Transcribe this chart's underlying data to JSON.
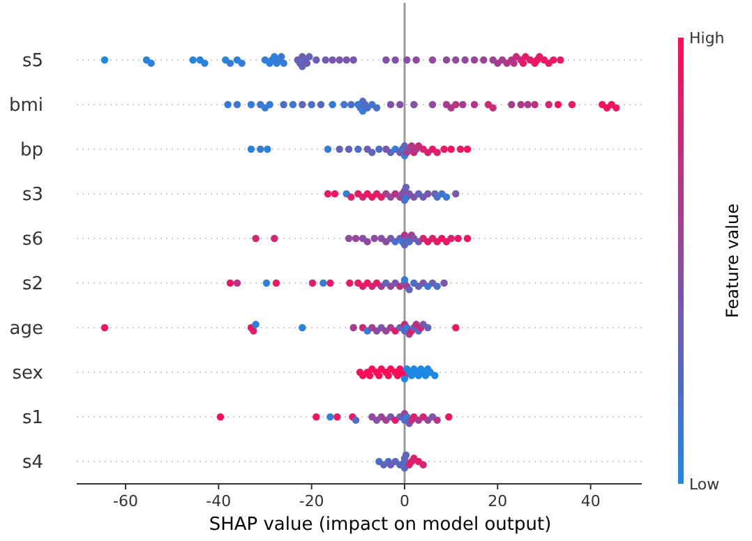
{
  "chart_data": {
    "type": "scatter",
    "orientation": "horizontal",
    "xlabel": "SHAP value (impact on model output)",
    "clabel": "Feature value",
    "categories": [
      "s5",
      "bmi",
      "bp",
      "s3",
      "s6",
      "s2",
      "age",
      "sex",
      "s1",
      "s4"
    ],
    "xlim": [
      -70.5,
      51
    ],
    "xticks": [
      -60,
      -40,
      -20,
      0,
      20,
      40
    ],
    "clim": [
      0,
      1
    ],
    "cticks": [
      {
        "value": 0,
        "label": "Low"
      },
      {
        "value": 1,
        "label": "High"
      }
    ],
    "grid": "y",
    "ref_lines": [
      {
        "axis": "x",
        "value": 0,
        "color": "#999999"
      }
    ],
    "series": [
      {
        "x": [
          "s5",
          "s5",
          "s5",
          "s5",
          "s5",
          "s5",
          "s5",
          "s5",
          "s5",
          "s5",
          "s5",
          "s5",
          "s5",
          "s5",
          "s5",
          "s5",
          "s5",
          "s5",
          "s5",
          "s5",
          "s5",
          "s5",
          "s5",
          "s5",
          "s5",
          "s5",
          "s5",
          "s5",
          "s5",
          "s5",
          "s5",
          "s5",
          "s5",
          "s5",
          "s5",
          "s5",
          "s5",
          "s5",
          "s5",
          "s5",
          "s5",
          "s5",
          "s5",
          "s5",
          "s5",
          "s5",
          "s5",
          "s5",
          "s5",
          "s5",
          "s5",
          "s5",
          "s5",
          "s5",
          "s5",
          "s5",
          "s5",
          "s5",
          "s5"
        ],
        "values": [
          -64.5,
          -55.5,
          -54.5,
          -45.5,
          -44,
          -43,
          -38.5,
          -37.5,
          -36,
          -35,
          -30,
          -29,
          -28.5,
          -28,
          -27.5,
          -27,
          -26.5,
          -26,
          -23,
          -22.5,
          -22,
          -22,
          -21.5,
          -21,
          -20.5,
          -19,
          -17,
          -15.5,
          -14,
          -12.5,
          -11,
          -4,
          -2,
          0.5,
          2.5,
          6,
          9,
          11,
          13,
          15,
          17,
          19,
          20,
          21,
          22,
          23,
          23.5,
          24,
          25,
          25.5,
          26,
          27,
          28,
          28.5,
          29,
          30,
          31,
          32,
          33.5
        ],
        "colors": [
          "#1e88e5",
          "#2982de",
          "#2982de",
          "#2982de",
          "#2982de",
          "#2982de",
          "#2982de",
          "#357cd7",
          "#2982de",
          "#357cd7",
          "#357cd7",
          "#2982de",
          "#357cd7",
          "#2982de",
          "#357cd7",
          "#357cd7",
          "#4076d0",
          "#357cd7",
          "#6263ba",
          "#6263ba",
          "#6d5db3",
          "#6263ba",
          "#6263ba",
          "#6d5db3",
          "#6263ba",
          "#6d5db3",
          "#6d5db3",
          "#7857ac",
          "#7857ac",
          "#7857ac",
          "#7857ac",
          "#8351a5",
          "#8351a5",
          "#8351a5",
          "#8f4b9e",
          "#8f4b9e",
          "#8f4b9e",
          "#8f4b9e",
          "#8f4b9e",
          "#9a4497",
          "#9a4497",
          "#9a4497",
          "#a53e90",
          "#a53e90",
          "#b03889",
          "#bc3282",
          "#b03889",
          "#c72c7b",
          "#d22673",
          "#e91965",
          "#e91965",
          "#dd1f6c",
          "#e91965",
          "#f4135e",
          "#e91965",
          "#f4135e",
          "#e91965",
          "#e91965",
          "#e91965"
        ]
      },
      {
        "x": [
          "bmi",
          "bmi",
          "bmi",
          "bmi",
          "bmi",
          "bmi",
          "bmi",
          "bmi",
          "bmi",
          "bmi",
          "bmi",
          "bmi",
          "bmi",
          "bmi",
          "bmi",
          "bmi",
          "bmi",
          "bmi",
          "bmi",
          "bmi",
          "bmi",
          "bmi",
          "bmi",
          "bmi",
          "bmi",
          "bmi",
          "bmi",
          "bmi",
          "bmi",
          "bmi",
          "bmi",
          "bmi",
          "bmi",
          "bmi",
          "bmi",
          "bmi",
          "bmi",
          "bmi",
          "bmi",
          "bmi",
          "bmi",
          "bmi",
          "bmi",
          "bmi"
        ],
        "values": [
          -38,
          -36,
          -33,
          -31,
          -30,
          -29,
          -26,
          -24,
          -22,
          -20,
          -18,
          -15.5,
          -13,
          -11.5,
          -10,
          -9.5,
          -9,
          -9,
          -8.5,
          -8,
          -7,
          -6,
          -3,
          -1,
          2,
          6,
          9,
          10,
          11,
          12.5,
          15,
          18,
          19,
          23,
          25,
          26.5,
          28,
          31,
          33,
          36,
          42.5,
          43.5,
          44.5,
          45.5
        ],
        "colors": [
          "#357cd7",
          "#4076d0",
          "#357cd7",
          "#4076d0",
          "#357cd7",
          "#357cd7",
          "#4b6fc9",
          "#4076d0",
          "#6263ba",
          "#4b6fc9",
          "#5669c2",
          "#357cd7",
          "#4076d0",
          "#4b6fc9",
          "#357cd7",
          "#4076d0",
          "#4b6fc9",
          "#357cd7",
          "#5669c2",
          "#4b6fc9",
          "#4076d0",
          "#4b6fc9",
          "#8351a5",
          "#8351a5",
          "#8351a5",
          "#8f4b9e",
          "#a53e90",
          "#b03889",
          "#bc3282",
          "#a53e90",
          "#b03889",
          "#d22673",
          "#c72c7b",
          "#a53e90",
          "#b03889",
          "#a53e90",
          "#bc3282",
          "#d22673",
          "#f4135e",
          "#e91965",
          "#f4135e",
          "#ff0d57",
          "#f4135e",
          "#f4135e"
        ]
      },
      {
        "x": [
          "bp",
          "bp",
          "bp",
          "bp",
          "bp",
          "bp",
          "bp",
          "bp",
          "bp",
          "bp",
          "bp",
          "bp",
          "bp",
          "bp",
          "bp",
          "bp",
          "bp",
          "bp",
          "bp",
          "bp",
          "bp",
          "bp",
          "bp",
          "bp",
          "bp",
          "bp",
          "bp",
          "bp",
          "bp",
          "bp",
          "bp"
        ],
        "values": [
          -33,
          -31,
          -29.5,
          -16.5,
          -14,
          -12,
          -10,
          -8,
          -7,
          -5.5,
          -4,
          -3,
          -2,
          -1,
          -0.5,
          0,
          0,
          0.5,
          1,
          1.5,
          2,
          2.5,
          3,
          4,
          5,
          6,
          7,
          8.5,
          10,
          12,
          13.5
        ],
        "colors": [
          "#2982de",
          "#357cd7",
          "#2982de",
          "#357cd7",
          "#6263ba",
          "#6263ba",
          "#4b6fc9",
          "#6d5db3",
          "#6263ba",
          "#4b6fc9",
          "#7857ac",
          "#6263ba",
          "#357cd7",
          "#7857ac",
          "#4b6fc9",
          "#6263ba",
          "#357cd7",
          "#a53e90",
          "#8f4b9e",
          "#bc3282",
          "#d22673",
          "#a53e90",
          "#c72c7b",
          "#dd1f6c",
          "#d22673",
          "#e91965",
          "#dd1f6c",
          "#e91965",
          "#f4135e",
          "#e91965",
          "#f4135e"
        ]
      },
      {
        "x": [
          "s3",
          "s3",
          "s3",
          "s3",
          "s3",
          "s3",
          "s3",
          "s3",
          "s3",
          "s3",
          "s3",
          "s3",
          "s3",
          "s3",
          "s3",
          "s3",
          "s3",
          "s3",
          "s3",
          "s3",
          "s3",
          "s3",
          "s3",
          "s3",
          "s3",
          "s3",
          "s3",
          "s3",
          "s3"
        ],
        "values": [
          -16.5,
          -15,
          -12.5,
          -11.5,
          -10,
          -9,
          -8,
          -7,
          -6,
          -5,
          -4,
          -3,
          -2,
          -1,
          -0.5,
          0,
          0,
          0.3,
          0.5,
          1,
          2,
          3,
          4,
          5,
          6.5,
          7,
          8,
          9,
          11
        ],
        "colors": [
          "#e91965",
          "#e91965",
          "#357cd7",
          "#dd1f6c",
          "#e91965",
          "#d22673",
          "#f4135e",
          "#e91965",
          "#dd1f6c",
          "#e91965",
          "#a53e90",
          "#8f4b9e",
          "#bc3282",
          "#a53e90",
          "#7857ac",
          "#8f4b9e",
          "#4b6fc9",
          "#6263ba",
          "#357cd7",
          "#7857ac",
          "#8351a5",
          "#6263ba",
          "#6d5db3",
          "#7857ac",
          "#6d5db3",
          "#4b6fc9",
          "#4076d0",
          "#357cd7",
          "#7857ac"
        ]
      },
      {
        "x": [
          "s6",
          "s6",
          "s6",
          "s6",
          "s6",
          "s6",
          "s6",
          "s6",
          "s6",
          "s6",
          "s6",
          "s6",
          "s6",
          "s6",
          "s6",
          "s6",
          "s6",
          "s6",
          "s6",
          "s6",
          "s6",
          "s6",
          "s6",
          "s6",
          "s6",
          "s6",
          "s6",
          "s6",
          "s6"
        ],
        "values": [
          -32,
          -28,
          -12,
          -10.5,
          -9,
          -8,
          -6.5,
          -5,
          -4,
          -3,
          -2,
          -1,
          -0.5,
          0,
          0,
          0.5,
          1,
          1.5,
          2,
          3,
          4,
          5,
          6,
          7,
          8,
          9,
          10,
          11.5,
          13.5
        ],
        "colors": [
          "#d22673",
          "#d22673",
          "#8f4b9e",
          "#9a4497",
          "#8351a5",
          "#8f4b9e",
          "#8f4b9e",
          "#8351a5",
          "#8f4b9e",
          "#7857ac",
          "#4b6fc9",
          "#6263ba",
          "#357cd7",
          "#bc3282",
          "#6263ba",
          "#7857ac",
          "#4b6fc9",
          "#a53e90",
          "#7857ac",
          "#6d5db3",
          "#d22673",
          "#e91965",
          "#dd1f6c",
          "#e91965",
          "#f4135e",
          "#e91965",
          "#dd1f6c",
          "#e91965",
          "#f4135e"
        ]
      },
      {
        "x": [
          "s2",
          "s2",
          "s2",
          "s2",
          "s2",
          "s2",
          "s2",
          "s2",
          "s2",
          "s2",
          "s2",
          "s2",
          "s2",
          "s2",
          "s2",
          "s2",
          "s2",
          "s2",
          "s2",
          "s2",
          "s2",
          "s2",
          "s2",
          "s2",
          "s2",
          "s2",
          "s2",
          "s2",
          "s2"
        ],
        "values": [
          -37.5,
          -36,
          -29.7,
          -27.6,
          -19.8,
          -17.5,
          -16,
          -11.8,
          -10,
          -9,
          -8,
          -7,
          -6,
          -5,
          -4,
          -3,
          -2,
          -1,
          0,
          0,
          0.5,
          1,
          2,
          3,
          4,
          5,
          6,
          7,
          8.5
        ],
        "colors": [
          "#e91965",
          "#bc3282",
          "#2982de",
          "#e91965",
          "#dd1f6c",
          "#357cd7",
          "#e91965",
          "#e91965",
          "#e91965",
          "#dd1f6c",
          "#f4135e",
          "#d22673",
          "#e91965",
          "#a53e90",
          "#6263ba",
          "#8f4b9e",
          "#7857ac",
          "#bc3282",
          "#7857ac",
          "#357cd7",
          "#a53e90",
          "#6263ba",
          "#4b6fc9",
          "#6263ba",
          "#7857ac",
          "#357cd7",
          "#6d5db3",
          "#4b6fc9",
          "#7857ac"
        ]
      },
      {
        "x": [
          "age",
          "age",
          "age",
          "age",
          "age",
          "age",
          "age",
          "age",
          "age",
          "age",
          "age",
          "age",
          "age",
          "age",
          "age",
          "age",
          "age",
          "age",
          "age",
          "age",
          "age",
          "age",
          "age",
          "age",
          "age",
          "age",
          "age"
        ],
        "values": [
          -64.5,
          -33,
          -32.5,
          -32,
          -22,
          -11,
          -9,
          -8,
          -7,
          -6,
          -5,
          -4,
          -3,
          -2,
          -1,
          0,
          0,
          0.5,
          1,
          1.5,
          2,
          2.5,
          3,
          3.5,
          4,
          5,
          11
        ],
        "colors": [
          "#f4135e",
          "#e91965",
          "#dd1f6c",
          "#2982de",
          "#2982de",
          "#a53e90",
          "#d22673",
          "#357cd7",
          "#a53e90",
          "#8f4b9e",
          "#7857ac",
          "#9a4497",
          "#a53e90",
          "#e91965",
          "#6263ba",
          "#4b6fc9",
          "#d22673",
          "#357cd7",
          "#a53e90",
          "#e91965",
          "#6263ba",
          "#bc3282",
          "#4b6fc9",
          "#dd1f6c",
          "#7857ac",
          "#6263ba",
          "#f4135e"
        ]
      },
      {
        "x": [
          "sex",
          "sex",
          "sex",
          "sex",
          "sex",
          "sex",
          "sex",
          "sex",
          "sex",
          "sex",
          "sex",
          "sex",
          "sex",
          "sex",
          "sex",
          "sex",
          "sex",
          "sex",
          "sex",
          "sex",
          "sex",
          "sex",
          "sex",
          "sex",
          "sex",
          "sex",
          "sex",
          "sex",
          "sex"
        ],
        "values": [
          -9.6,
          -9,
          -8,
          -7.5,
          -7,
          -6,
          -5.5,
          -5,
          -4,
          -3.5,
          -3,
          -2,
          -1.5,
          -1,
          -0.5,
          0,
          0,
          0.5,
          1,
          1.5,
          2,
          2.5,
          3,
          3.5,
          4,
          4.5,
          5,
          5.5,
          6.5
        ],
        "colors": [
          "#ff0d57",
          "#ff0d57",
          "#ff0d57",
          "#ff0d57",
          "#ff0d57",
          "#ff0d57",
          "#ff0d57",
          "#ff0d57",
          "#ff0d57",
          "#ff0d57",
          "#ff0d57",
          "#ff0d57",
          "#ff0d57",
          "#ff0d57",
          "#ff0d57",
          "#ff0d57",
          "#1e88e5",
          "#1e88e5",
          "#1e88e5",
          "#1e88e5",
          "#1e88e5",
          "#1e88e5",
          "#1e88e5",
          "#1e88e5",
          "#1e88e5",
          "#1e88e5",
          "#1e88e5",
          "#1e88e5",
          "#1e88e5"
        ]
      },
      {
        "x": [
          "s1",
          "s1",
          "s1",
          "s1",
          "s1",
          "s1",
          "s1",
          "s1",
          "s1",
          "s1",
          "s1",
          "s1",
          "s1",
          "s1",
          "s1",
          "s1",
          "s1",
          "s1",
          "s1",
          "s1",
          "s1",
          "s1",
          "s1",
          "s1",
          "s1"
        ],
        "values": [
          -39.6,
          -19,
          -16,
          -14.5,
          -11.2,
          -10.5,
          -7,
          -6,
          -5,
          -4,
          -3,
          -2,
          -1,
          0,
          0,
          0.5,
          1,
          1.5,
          2,
          3,
          4,
          5,
          6,
          7,
          9.5
        ],
        "colors": [
          "#ff0d57",
          "#f4135e",
          "#2982de",
          "#e91965",
          "#e91965",
          "#4b6fc9",
          "#8f4b9e",
          "#8351a5",
          "#9a4497",
          "#a53e90",
          "#7857ac",
          "#e91965",
          "#6263ba",
          "#4b6fc9",
          "#a53e90",
          "#357cd7",
          "#7857ac",
          "#bc3282",
          "#dd1f6c",
          "#a53e90",
          "#d22673",
          "#9a4497",
          "#7857ac",
          "#bc3282",
          "#f4135e"
        ]
      },
      {
        "x": [
          "s4",
          "s4",
          "s4",
          "s4",
          "s4",
          "s4",
          "s4",
          "s4",
          "s4",
          "s4",
          "s4",
          "s4",
          "s4",
          "s4",
          "s4"
        ],
        "values": [
          -5.5,
          -4.5,
          -3.5,
          -3,
          -2,
          -1,
          0,
          0,
          0,
          0.3,
          1,
          1.5,
          2,
          3,
          4
        ],
        "colors": [
          "#4b6fc9",
          "#6263ba",
          "#4b6fc9",
          "#6d5db3",
          "#6263ba",
          "#5669c2",
          "#4b6fc9",
          "#6263ba",
          "#5669c2",
          "#6263ba",
          "#d22673",
          "#e91965",
          "#dd1f6c",
          "#e91965",
          "#d22673"
        ]
      }
    ]
  }
}
